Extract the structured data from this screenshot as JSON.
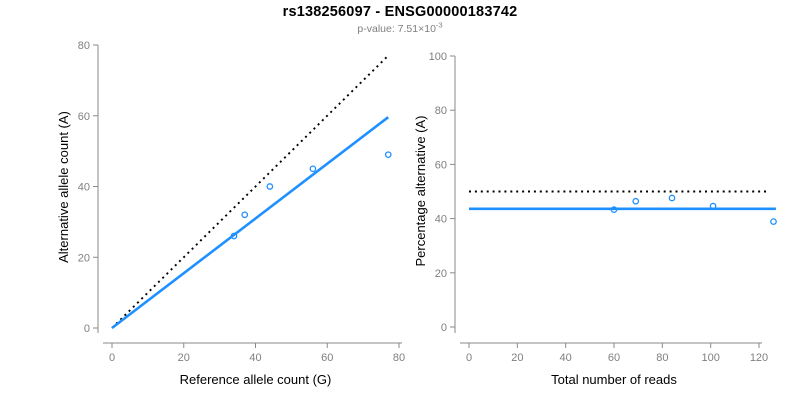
{
  "title": "rs138256097 - ENSG00000183742",
  "subtitle": {
    "prefix": "p-value: 7.51×10",
    "exponent": "-3"
  },
  "colors": {
    "accent_blue": "#1E90FF",
    "dotted_black": "#000000",
    "axis_gray": "#8a8a8a",
    "tick_label_gray": "#7f7f7f",
    "axis_title_black": "#000000",
    "background": "#ffffff"
  },
  "chart_data": [
    {
      "type": "scatter",
      "panel": "left",
      "xlabel": "Reference allele count (G)",
      "ylabel": "Alternative allele count (A)",
      "xlim": [
        0,
        80
      ],
      "ylim": [
        0,
        80
      ],
      "xticks": [
        0,
        20,
        40,
        60,
        80
      ],
      "yticks": [
        0,
        20,
        40,
        60,
        80
      ],
      "grid": false,
      "legend": "none",
      "points": [
        {
          "x": 34,
          "y": 26
        },
        {
          "x": 37,
          "y": 32
        },
        {
          "x": 44,
          "y": 40
        },
        {
          "x": 56,
          "y": 45
        },
        {
          "x": 77,
          "y": 49
        }
      ],
      "lines": [
        {
          "name": "identity-line",
          "style": "dotted",
          "color": "#000000",
          "x1": 0,
          "y1": 0,
          "x2": 77,
          "y2": 77
        },
        {
          "name": "fit-line",
          "style": "solid",
          "color": "#1E90FF",
          "x1": 0,
          "y1": 0,
          "x2": 77,
          "y2": 59.6
        }
      ]
    },
    {
      "type": "scatter",
      "panel": "right",
      "xlabel": "Total number of reads",
      "ylabel": "Percentage alternative (A)",
      "xlim": [
        0,
        127
      ],
      "ylim": [
        0,
        100
      ],
      "xticks": [
        0,
        20,
        40,
        60,
        80,
        100,
        120
      ],
      "yticks": [
        0,
        20,
        40,
        60,
        80,
        100
      ],
      "grid": false,
      "legend": "none",
      "points": [
        {
          "x": 60,
          "y": 43.3
        },
        {
          "x": 69,
          "y": 46.4
        },
        {
          "x": 84,
          "y": 47.6
        },
        {
          "x": 101,
          "y": 44.6
        },
        {
          "x": 126,
          "y": 38.9
        }
      ],
      "lines": [
        {
          "name": "expected-50pct-line",
          "style": "dotted",
          "color": "#000000",
          "x1": 0,
          "y1": 50,
          "x2": 124.5,
          "y2": 50
        },
        {
          "name": "mean-percentage-line",
          "style": "solid",
          "color": "#1E90FF",
          "x1": 0,
          "y1": 43.6,
          "x2": 127,
          "y2": 43.6
        }
      ]
    }
  ]
}
